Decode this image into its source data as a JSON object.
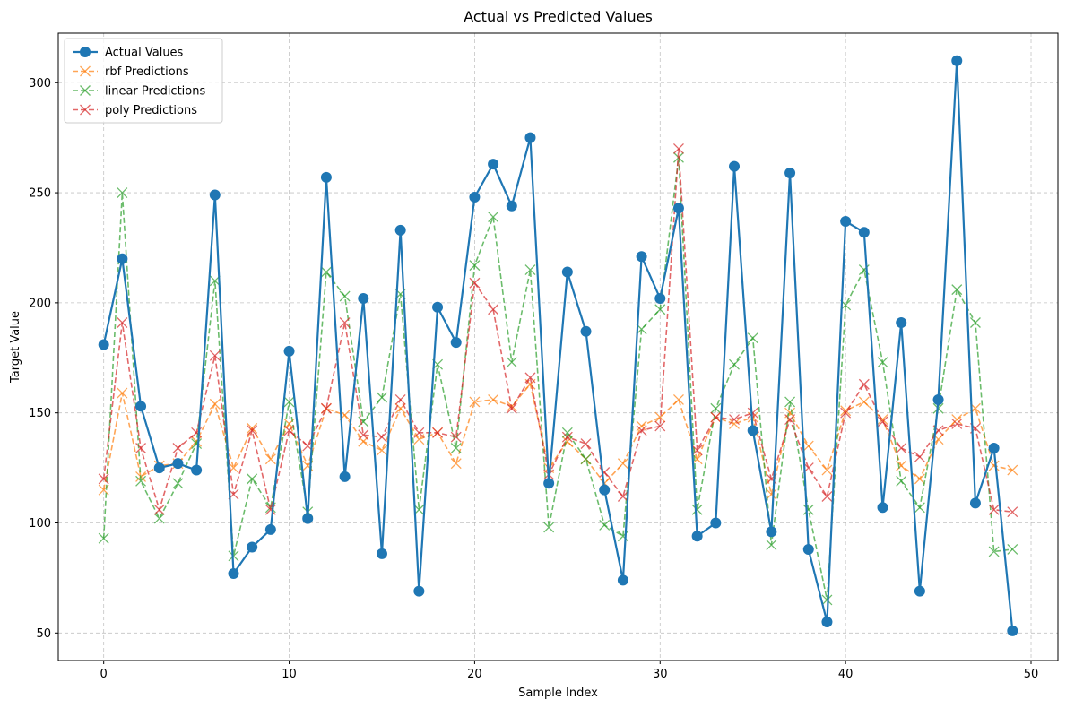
{
  "chart_data": {
    "type": "line",
    "title": "Actual vs Predicted Values",
    "xlabel": "Sample Index",
    "ylabel": "Target Value",
    "xlim": [
      -2.45,
      51.45
    ],
    "ylim": [
      37.5,
      322.5
    ],
    "xticks": [
      0,
      10,
      20,
      30,
      40,
      50
    ],
    "yticks": [
      50,
      100,
      150,
      200,
      250,
      300
    ],
    "grid": true,
    "legend_position": "top-left",
    "x": [
      0,
      1,
      2,
      3,
      4,
      5,
      6,
      7,
      8,
      9,
      10,
      11,
      12,
      13,
      14,
      15,
      16,
      17,
      18,
      19,
      20,
      21,
      22,
      23,
      24,
      25,
      26,
      27,
      28,
      29,
      30,
      31,
      32,
      33,
      34,
      35,
      36,
      37,
      38,
      39,
      40,
      41,
      42,
      43,
      44,
      45,
      46,
      47,
      48,
      49
    ],
    "series": [
      {
        "name": "Actual Values",
        "color": "#1f77b4",
        "style": "solid",
        "marker": "circle",
        "values": [
          181,
          220,
          153,
          125,
          127,
          124,
          249,
          77,
          89,
          97,
          178,
          102,
          257,
          121,
          202,
          86,
          233,
          69,
          198,
          182,
          248,
          263,
          244,
          275,
          118,
          214,
          187,
          115,
          74,
          221,
          202,
          243,
          94,
          100,
          262,
          142,
          96,
          259,
          88,
          55,
          237,
          232,
          107,
          191,
          69,
          156,
          310,
          109,
          134,
          51
        ]
      },
      {
        "name": "rbf Predictions",
        "color": "#ff7f0e",
        "style": "dashed",
        "marker": "x",
        "values": [
          115,
          159,
          121,
          126,
          127,
          137,
          154,
          125,
          143,
          129,
          145,
          126,
          152,
          149,
          137,
          133,
          152,
          138,
          141,
          127,
          155,
          156,
          153,
          163,
          125,
          137,
          129,
          118,
          127,
          144,
          148,
          156,
          129,
          148,
          145,
          148,
          113,
          150,
          135,
          124,
          151,
          155,
          147,
          126,
          120,
          138,
          147,
          152,
          126,
          124
        ]
      },
      {
        "name": "linear Predictions",
        "color": "#2ca02c",
        "style": "dashed",
        "marker": "x",
        "values": [
          93,
          250,
          119,
          102,
          118,
          136,
          210,
          85,
          120,
          107,
          155,
          105,
          214,
          203,
          146,
          157,
          204,
          106,
          172,
          134,
          217,
          239,
          173,
          215,
          98,
          141,
          129,
          99,
          94,
          188,
          197,
          266,
          106,
          152,
          172,
          184,
          90,
          155,
          106,
          65,
          199,
          215,
          173,
          119,
          107,
          152,
          206,
          191,
          87,
          88
        ]
      },
      {
        "name": "poly Predictions",
        "color": "#d62728",
        "style": "dashed",
        "marker": "x",
        "values": [
          120,
          191,
          134,
          106,
          134,
          141,
          176,
          113,
          142,
          106,
          142,
          135,
          152,
          191,
          140,
          139,
          156,
          141,
          141,
          139,
          209,
          197,
          152,
          166,
          122,
          139,
          136,
          123,
          112,
          142,
          144,
          270,
          133,
          148,
          147,
          150,
          120,
          147,
          125,
          112,
          150,
          163,
          146,
          134,
          130,
          142,
          145,
          143,
          106,
          105
        ]
      }
    ]
  }
}
